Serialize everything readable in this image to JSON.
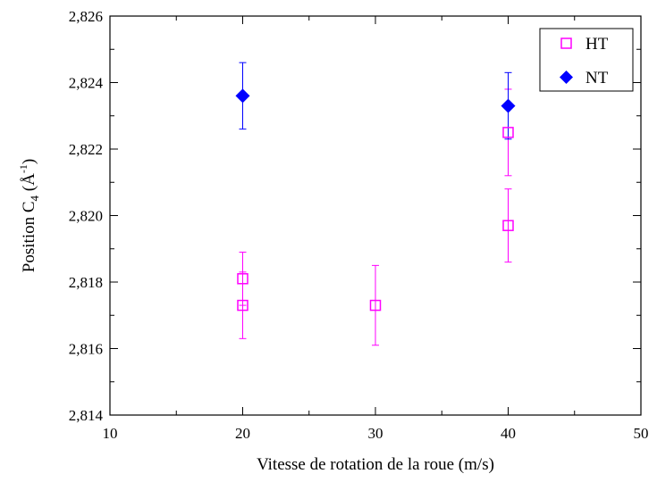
{
  "chart_data": {
    "type": "scatter",
    "xlabel": "Vitesse de rotation de la roue (m/s)",
    "ylabel": {
      "prefix": "Position C",
      "subscript": "4",
      "unit_open": " (Å",
      "superscript": "-1",
      "unit_close": ")"
    },
    "xlim": [
      10,
      50
    ],
    "ylim": [
      2.814,
      2.826
    ],
    "x_ticks": [
      10,
      20,
      30,
      40,
      50
    ],
    "x_tick_labels": [
      "10",
      "20",
      "30",
      "40",
      "50"
    ],
    "y_ticks": [
      2.814,
      2.816,
      2.818,
      2.82,
      2.822,
      2.824,
      2.826
    ],
    "y_tick_labels": [
      "2,814",
      "2,816",
      "2,818",
      "2,820",
      "2,822",
      "2,824",
      "2,826"
    ],
    "grid": false,
    "legend_position": "top-right",
    "series": [
      {
        "name": "HT",
        "marker": "open-square",
        "color": "#ff00ff",
        "points": [
          {
            "x": 20,
            "y": 2.8181,
            "err": 0.0008
          },
          {
            "x": 20,
            "y": 2.8173,
            "err": 0.001
          },
          {
            "x": 30,
            "y": 2.8173,
            "err": 0.0012
          },
          {
            "x": 40,
            "y": 2.8225,
            "err": 0.0013
          },
          {
            "x": 40,
            "y": 2.8197,
            "err": 0.0011
          }
        ]
      },
      {
        "name": "NT",
        "marker": "filled-diamond",
        "color": "#0000ff",
        "points": [
          {
            "x": 20,
            "y": 2.8236,
            "err": 0.001
          },
          {
            "x": 40,
            "y": 2.8233,
            "err": 0.001
          }
        ]
      }
    ]
  }
}
